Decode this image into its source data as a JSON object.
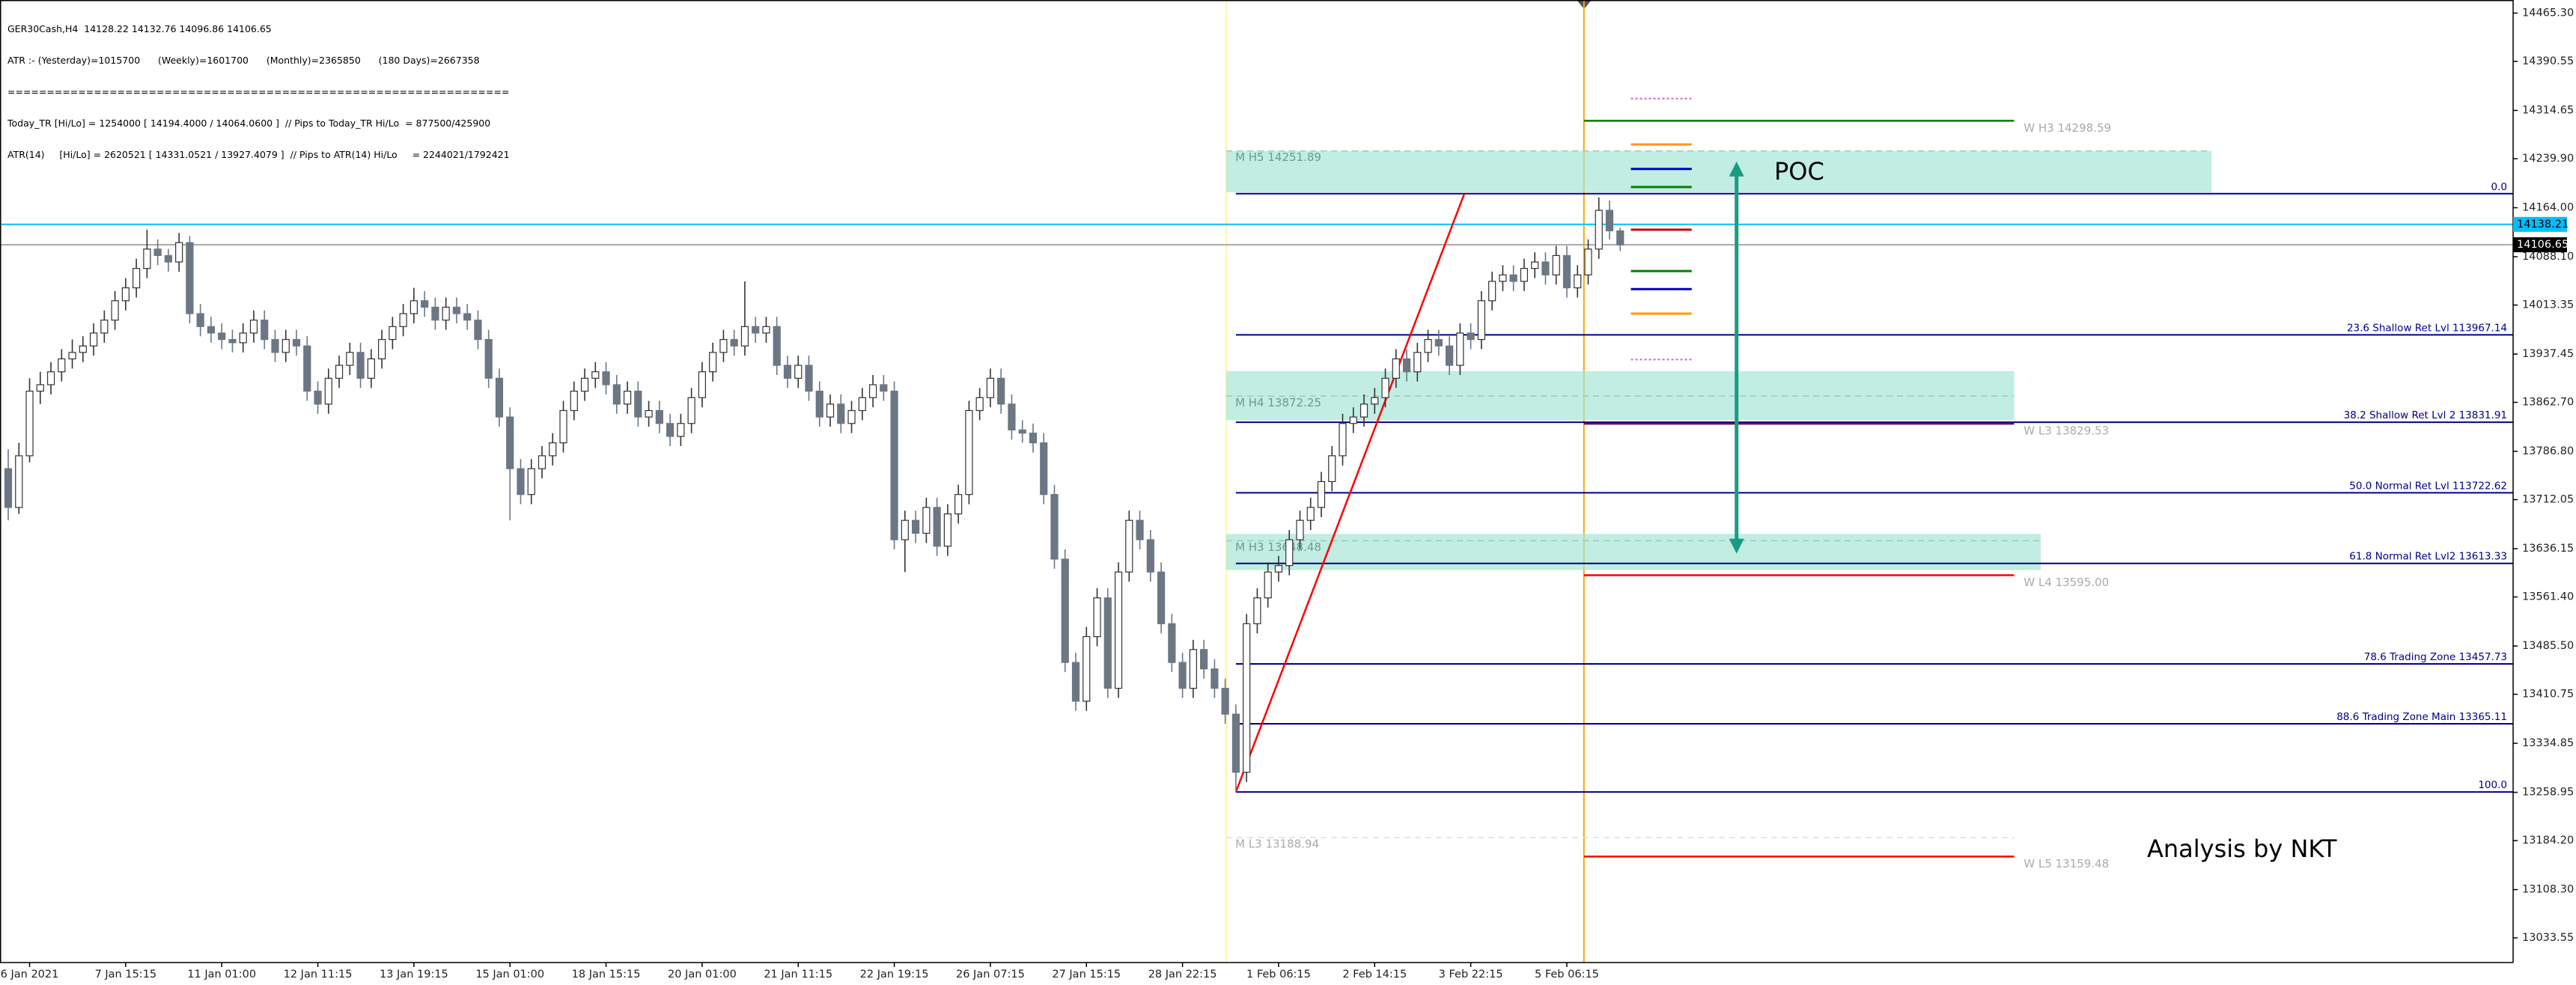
{
  "header_lines": [
    "GER30Cash,H4  14128.22 14132.76 14096.86 14106.65",
    "ATR :- (Yesterday)=1015700      (Weekly)=1601700      (Monthly)=2365850      (180 Days)=2667358",
    "================================================================",
    "Today_TR [Hi/Lo] = 1254000 [ 14194.4000 / 14064.0600 ]  // Pips to Today_TR Hi/Lo  = 877500/425900",
    "ATR(14)     [Hi/Lo] = 2620521 [ 14331.0521 / 13927.4079 ]  // Pips to ATR(14) Hi/Lo     = 2244021/1792421"
  ],
  "chart_data": {
    "type": "candlestick",
    "bull_color": "#ffffff",
    "bear_color": "#6b7785",
    "candles": [
      [
        13760,
        13790,
        13680,
        13700
      ],
      [
        13700,
        13800,
        13690,
        13780
      ],
      [
        13780,
        13900,
        13770,
        13880
      ],
      [
        13880,
        13910,
        13860,
        13890
      ],
      [
        13890,
        13925,
        13875,
        13910
      ],
      [
        13910,
        13945,
        13895,
        13930
      ],
      [
        13930,
        13960,
        13915,
        13940
      ],
      [
        13940,
        13965,
        13925,
        13950
      ],
      [
        13950,
        13985,
        13935,
        13970
      ],
      [
        13970,
        14005,
        13955,
        13990
      ],
      [
        13990,
        14035,
        13975,
        14020
      ],
      [
        14020,
        14055,
        14005,
        14040
      ],
      [
        14040,
        14085,
        14025,
        14070
      ],
      [
        14070,
        14130,
        14055,
        14100
      ],
      [
        14100,
        14115,
        14075,
        14090
      ],
      [
        14090,
        14100,
        14065,
        14080
      ],
      [
        14080,
        14125,
        14065,
        14110
      ],
      [
        14110,
        14120,
        13985,
        14000
      ],
      [
        14000,
        14015,
        13965,
        13980
      ],
      [
        13980,
        13995,
        13955,
        13970
      ],
      [
        13970,
        13985,
        13945,
        13960
      ],
      [
        13960,
        13975,
        13940,
        13955
      ],
      [
        13955,
        13985,
        13940,
        13970
      ],
      [
        13970,
        14005,
        13955,
        13990
      ],
      [
        13990,
        14005,
        13945,
        13960
      ],
      [
        13960,
        13975,
        13925,
        13940
      ],
      [
        13940,
        13975,
        13925,
        13960
      ],
      [
        13960,
        13975,
        13935,
        13950
      ],
      [
        13950,
        13965,
        13865,
        13880
      ],
      [
        13880,
        13895,
        13845,
        13860
      ],
      [
        13860,
        13915,
        13845,
        13900
      ],
      [
        13900,
        13935,
        13885,
        13920
      ],
      [
        13920,
        13955,
        13905,
        13940
      ],
      [
        13940,
        13955,
        13885,
        13900
      ],
      [
        13900,
        13945,
        13885,
        13930
      ],
      [
        13930,
        13975,
        13915,
        13960
      ],
      [
        13960,
        13995,
        13945,
        13980
      ],
      [
        13980,
        14015,
        13965,
        14000
      ],
      [
        14000,
        14040,
        13985,
        14020
      ],
      [
        14020,
        14035,
        13995,
        14010
      ],
      [
        14010,
        14025,
        13975,
        13990
      ],
      [
        13990,
        14025,
        13975,
        14010
      ],
      [
        14010,
        14025,
        13985,
        14000
      ],
      [
        14000,
        14015,
        13975,
        13990
      ],
      [
        13990,
        14005,
        13945,
        13960
      ],
      [
        13960,
        13975,
        13885,
        13900
      ],
      [
        13900,
        13915,
        13825,
        13840
      ],
      [
        13840,
        13855,
        13680,
        13760
      ],
      [
        13760,
        13775,
        13705,
        13720
      ],
      [
        13720,
        13775,
        13705,
        13760
      ],
      [
        13760,
        13795,
        13745,
        13780
      ],
      [
        13780,
        13815,
        13765,
        13800
      ],
      [
        13800,
        13865,
        13785,
        13850
      ],
      [
        13850,
        13895,
        13835,
        13880
      ],
      [
        13880,
        13915,
        13865,
        13900
      ],
      [
        13900,
        13925,
        13885,
        13910
      ],
      [
        13910,
        13925,
        13875,
        13890
      ],
      [
        13890,
        13905,
        13845,
        13860
      ],
      [
        13860,
        13895,
        13845,
        13880
      ],
      [
        13880,
        13895,
        13825,
        13840
      ],
      [
        13840,
        13865,
        13825,
        13850
      ],
      [
        13850,
        13865,
        13815,
        13830
      ],
      [
        13830,
        13845,
        13795,
        13810
      ],
      [
        13810,
        13845,
        13795,
        13830
      ],
      [
        13830,
        13885,
        13815,
        13870
      ],
      [
        13870,
        13925,
        13855,
        13910
      ],
      [
        13910,
        13955,
        13895,
        13940
      ],
      [
        13940,
        13975,
        13925,
        13960
      ],
      [
        13960,
        13975,
        13935,
        13950
      ],
      [
        13950,
        14050,
        13935,
        13980
      ],
      [
        13980,
        13995,
        13955,
        13970
      ],
      [
        13970,
        13995,
        13955,
        13980
      ],
      [
        13980,
        13995,
        13905,
        13920
      ],
      [
        13920,
        13935,
        13885,
        13900
      ],
      [
        13900,
        13935,
        13885,
        13920
      ],
      [
        13920,
        13935,
        13865,
        13880
      ],
      [
        13880,
        13895,
        13825,
        13840
      ],
      [
        13840,
        13875,
        13825,
        13860
      ],
      [
        13860,
        13875,
        13815,
        13830
      ],
      [
        13830,
        13865,
        13815,
        13850
      ],
      [
        13850,
        13885,
        13835,
        13870
      ],
      [
        13870,
        13905,
        13855,
        13890
      ],
      [
        13890,
        13905,
        13865,
        13880
      ],
      [
        13880,
        13895,
        13635,
        13650
      ],
      [
        13650,
        13695,
        13600,
        13680
      ],
      [
        13680,
        13695,
        13645,
        13660
      ],
      [
        13660,
        13715,
        13645,
        13700
      ],
      [
        13700,
        13715,
        13625,
        13640
      ],
      [
        13640,
        13705,
        13625,
        13690
      ],
      [
        13690,
        13735,
        13675,
        13720
      ],
      [
        13720,
        13865,
        13705,
        13850
      ],
      [
        13850,
        13885,
        13835,
        13870
      ],
      [
        13870,
        13915,
        13855,
        13900
      ],
      [
        13900,
        13915,
        13845,
        13860
      ],
      [
        13860,
        13875,
        13805,
        13820
      ],
      [
        13820,
        13835,
        13800,
        13815
      ],
      [
        13815,
        13830,
        13785,
        13800
      ],
      [
        13800,
        13815,
        13705,
        13720
      ],
      [
        13720,
        13735,
        13605,
        13620
      ],
      [
        13620,
        13635,
        13445,
        13460
      ],
      [
        13460,
        13475,
        13385,
        13400
      ],
      [
        13400,
        13515,
        13385,
        13500
      ],
      [
        13500,
        13575,
        13485,
        13560
      ],
      [
        13560,
        13575,
        13405,
        13420
      ],
      [
        13420,
        13615,
        13405,
        13600
      ],
      [
        13600,
        13695,
        13585,
        13680
      ],
      [
        13680,
        13695,
        13635,
        13650
      ],
      [
        13650,
        13665,
        13585,
        13600
      ],
      [
        13600,
        13615,
        13505,
        13520
      ],
      [
        13520,
        13535,
        13445,
        13460
      ],
      [
        13460,
        13475,
        13405,
        13420
      ],
      [
        13420,
        13495,
        13405,
        13480
      ],
      [
        13480,
        13495,
        13435,
        13450
      ],
      [
        13450,
        13465,
        13405,
        13420
      ],
      [
        13420,
        13435,
        13365,
        13380
      ],
      [
        13380,
        13395,
        13259,
        13290
      ],
      [
        13290,
        13535,
        13275,
        13520
      ],
      [
        13520,
        13575,
        13505,
        13560
      ],
      [
        13560,
        13615,
        13545,
        13600
      ],
      [
        13600,
        13625,
        13585,
        13610
      ],
      [
        13610,
        13665,
        13595,
        13650
      ],
      [
        13650,
        13695,
        13635,
        13680
      ],
      [
        13680,
        13715,
        13665,
        13700
      ],
      [
        13700,
        13755,
        13685,
        13740
      ],
      [
        13740,
        13795,
        13725,
        13780
      ],
      [
        13780,
        13845,
        13765,
        13830
      ],
      [
        13830,
        13855,
        13815,
        13840
      ],
      [
        13840,
        13875,
        13825,
        13860
      ],
      [
        13860,
        13885,
        13845,
        13870
      ],
      [
        13870,
        13915,
        13855,
        13900
      ],
      [
        13900,
        13945,
        13885,
        13930
      ],
      [
        13930,
        13945,
        13895,
        13910
      ],
      [
        13910,
        13955,
        13895,
        13940
      ],
      [
        13940,
        13975,
        13925,
        13960
      ],
      [
        13960,
        13975,
        13935,
        13950
      ],
      [
        13950,
        13965,
        13905,
        13920
      ],
      [
        13920,
        13985,
        13905,
        13970
      ],
      [
        13970,
        13985,
        13945,
        13960
      ],
      [
        13960,
        14035,
        13945,
        14020
      ],
      [
        14020,
        14065,
        14005,
        14050
      ],
      [
        14050,
        14075,
        14035,
        14060
      ],
      [
        14060,
        14075,
        14035,
        14050
      ],
      [
        14050,
        14085,
        14035,
        14070
      ],
      [
        14070,
        14095,
        14055,
        14080
      ],
      [
        14080,
        14095,
        14045,
        14060
      ],
      [
        14060,
        14105,
        14045,
        14090
      ],
      [
        14090,
        14105,
        14025,
        14040
      ],
      [
        14040,
        14075,
        14025,
        14060
      ],
      [
        14060,
        14115,
        14045,
        14100
      ],
      [
        14100,
        14180,
        14085,
        14160
      ],
      [
        14160,
        14175,
        14115,
        14128.22
      ],
      [
        14128.22,
        14132.76,
        14096.86,
        14106.65
      ]
    ],
    "ylim": [
      12995.4,
      14485.6
    ],
    "yticks": [
      {
        "value": 14465.3,
        "label": "14465.30"
      },
      {
        "value": 14390.55,
        "label": "14390.55"
      },
      {
        "value": 14314.65,
        "label": "14314.65"
      },
      {
        "value": 14239.9,
        "label": "14239.90"
      },
      {
        "value": 14164,
        "label": "14164.00"
      },
      {
        "value": 14088.1,
        "label": "14088.10"
      },
      {
        "value": 14013.35,
        "label": "14013.35"
      },
      {
        "value": 13937.45,
        "label": "13937.45"
      },
      {
        "value": 13862.7,
        "label": "13862.70"
      },
      {
        "value": 13786.8,
        "label": "13786.80"
      },
      {
        "value": 13712.05,
        "label": "13712.05"
      },
      {
        "value": 13636.15,
        "label": "13636.15"
      },
      {
        "value": 13561.4,
        "label": "13561.40"
      },
      {
        "value": 13485.5,
        "label": "13485.50"
      },
      {
        "value": 13410.75,
        "label": "13410.75"
      },
      {
        "value": 13334.85,
        "label": "13334.85"
      },
      {
        "value": 13258.95,
        "label": "13258.95"
      },
      {
        "value": 13184.2,
        "label": "13184.20"
      },
      {
        "value": 13108.3,
        "label": "13108.30"
      },
      {
        "value": 13033.55,
        "label": "13033.55"
      }
    ],
    "xticks": [
      {
        "value": 2,
        "label": "6 Jan 2021"
      },
      {
        "value": 11,
        "label": "7 Jan 15:15"
      },
      {
        "value": 20,
        "label": "11 Jan 01:00"
      },
      {
        "value": 29,
        "label": "12 Jan 11:15"
      },
      {
        "value": 38,
        "label": "13 Jan 19:15"
      },
      {
        "value": 47,
        "label": "15 Jan 01:00"
      },
      {
        "value": 56,
        "label": "18 Jan 15:15"
      },
      {
        "value": 65,
        "label": "20 Jan 01:00"
      },
      {
        "value": 74,
        "label": "21 Jan 11:15"
      },
      {
        "value": 83,
        "label": "22 Jan 19:15"
      },
      {
        "value": 92,
        "label": "26 Jan 07:15"
      },
      {
        "value": 101,
        "label": "27 Jan 15:15"
      },
      {
        "value": 110,
        "label": "28 Jan 22:15"
      },
      {
        "value": 119,
        "label": "1 Feb 06:15"
      },
      {
        "value": 128,
        "label": "2 Feb 14:15"
      },
      {
        "value": 137,
        "label": "3 Feb 22:15"
      },
      {
        "value": 146,
        "label": "5 Feb 06:15"
      }
    ],
    "price_lines": [
      {
        "value": 14138.21,
        "label": "14138.21",
        "color": "#00bfff",
        "label_color": "#000000"
      },
      {
        "value": 14106.65,
        "label": "14106.65",
        "color": "#000000",
        "label_color": "#ffffff"
      }
    ],
    "session_lines": [
      {
        "x": 114.1,
        "color": "#fff3b0"
      },
      {
        "x": 147.6,
        "color": "#ffa500"
      }
    ],
    "zone_color": "#a6e6d6",
    "monthly_zones": [
      {
        "label": "M  H5 14251.89",
        "value": 14251.89,
        "top": 14252,
        "bottom": 14188,
        "from": 114.1,
        "to": 206.4
      },
      {
        "label": "M  H4 13872.25",
        "value": 13872.25,
        "top": 13911,
        "bottom": 13835,
        "from": 114.1,
        "to": 187.9
      },
      {
        "label": "M  H3 13648.48",
        "value": 13648.48,
        "top": 13659,
        "bottom": 13603,
        "from": 114.1,
        "to": 190.4
      }
    ],
    "monthly_lines": [
      {
        "label": "M  L3 13188.94",
        "value": 13188.94,
        "from": 114.1,
        "to": 187.9
      }
    ],
    "weekly_levels": [
      {
        "label": "W  H3 14298.59",
        "value": 14298.59,
        "color": "#008000"
      },
      {
        "label": "W  L3 13829.53",
        "value": 13829.53,
        "color": "#800040"
      },
      {
        "label": "W  L4 13595.00",
        "value": 13595,
        "color": "#ff0000"
      },
      {
        "label": "W  L5 13159.48",
        "value": 13159.48,
        "color": "#ff0000"
      }
    ],
    "fib_color": "#00008b",
    "fib_levels": [
      {
        "label": "0.0",
        "value": 14185.7
      },
      {
        "label": "23.6 Shallow Ret Lvl 113967.14",
        "value": 13967.14
      },
      {
        "label": "38.2 Shallow Ret Lvl 2 13831.91",
        "value": 13831.91
      },
      {
        "label": "50.0 Normal Ret Lvl 113722.62",
        "value": 13722.62
      },
      {
        "label": "61.8 Normal Ret Lvl2 13613.33",
        "value": 13613.33
      },
      {
        "label": "78.6 Trading Zone 13457.73",
        "value": 13457.73
      },
      {
        "label": "88.6 Trading Zone Main 13365.11",
        "value": 13365.11
      },
      {
        "label": "100.0",
        "value": 13259.5
      }
    ],
    "trendline": {
      "from": [
        115,
        13259.5
      ],
      "to": [
        136.4,
        14185.7
      ],
      "color": "#ff0000"
    },
    "short_levels": [
      {
        "value": 14333,
        "color": "#cc66cc",
        "dotted": true
      },
      {
        "value": 14262,
        "color": "#ff9900",
        "dotted": false
      },
      {
        "value": 14224,
        "color": "#0000cc",
        "dotted": false
      },
      {
        "value": 14196,
        "color": "#008000",
        "dotted": false
      },
      {
        "value": 14130,
        "color": "#cc0000",
        "dotted": false
      },
      {
        "value": 14066,
        "color": "#008000",
        "dotted": false
      },
      {
        "value": 14038,
        "color": "#0000cc",
        "dotted": false
      },
      {
        "value": 14000,
        "color": "#ff9900",
        "dotted": false
      },
      {
        "value": 13929,
        "color": "#cc66cc",
        "dotted": true
      }
    ],
    "arrow": {
      "from": 14224,
      "to": 13640,
      "color": "#1a9c84"
    },
    "annotations": [
      "POC",
      "Analysis by NKT"
    ]
  }
}
